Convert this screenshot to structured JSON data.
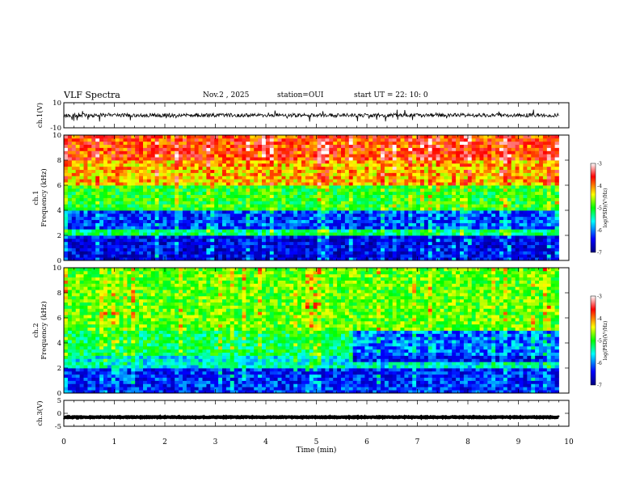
{
  "header": {
    "title": "VLF Spectra",
    "date": "Nov.2 , 2025",
    "station": "station=OUI",
    "start": "start UT = 22: 10: 0"
  },
  "chart_data": [
    {
      "type": "line",
      "panel": "ch1-waveform",
      "ylabel": "ch.1(V)",
      "ylim": [
        -10,
        10
      ],
      "yticks": [
        "10",
        "-10"
      ],
      "xlim": [
        0,
        10
      ],
      "trace_end_min": 9.8,
      "baseline": 0,
      "noise_amplitude": 1.5
    },
    {
      "type": "heatmap",
      "panel": "ch1-spectrogram",
      "ylabel": "ch.1 Frequency (kHz)",
      "ylim": [
        0,
        10
      ],
      "yticks": [
        "0",
        "2",
        "4",
        "6",
        "8",
        "10"
      ],
      "xlim": [
        0,
        10
      ],
      "data_end_min": 9.8,
      "colorbar": {
        "label": "log(PSD)(V²/Hz)",
        "range": [
          -7,
          -3
        ],
        "ticks": [
          "-3",
          "-4",
          "-5",
          "-6",
          "-7"
        ]
      },
      "levels_by_band": [
        {
          "from_khz": 0,
          "to_khz": 2,
          "log_psd": -6.5
        },
        {
          "from_khz": 2,
          "to_khz": 2.5,
          "log_psd": -5.3
        },
        {
          "from_khz": 2.5,
          "to_khz": 4,
          "log_psd": -6.2
        },
        {
          "from_khz": 4,
          "to_khz": 6,
          "log_psd": -5.0
        },
        {
          "from_khz": 6,
          "to_khz": 8,
          "log_psd": -4.2
        },
        {
          "from_khz": 8,
          "to_khz": 10,
          "log_psd": -3.8
        }
      ]
    },
    {
      "type": "heatmap",
      "panel": "ch2-spectrogram",
      "ylabel": "ch.2 Frequency (kHz)",
      "ylim": [
        0,
        10
      ],
      "yticks": [
        "0",
        "2",
        "4",
        "6",
        "8",
        "10"
      ],
      "xlim": [
        0,
        10
      ],
      "data_end_min": 9.8,
      "colorbar": {
        "label": "log(PSD)(V²/Hz)",
        "range": [
          -7,
          -3
        ],
        "ticks": [
          "-3",
          "-4",
          "-5",
          "-6",
          "-7"
        ]
      },
      "levels_by_band": [
        {
          "from_khz": 0,
          "to_khz": 2,
          "log_psd": -6.3
        },
        {
          "from_khz": 2,
          "to_khz": 3,
          "log_psd": -5.6
        },
        {
          "from_khz": 3,
          "to_khz": 5,
          "log_psd": -5.2
        },
        {
          "from_khz": 5,
          "to_khz": 10,
          "log_psd": -4.8
        }
      ],
      "change_at_min": 5.7
    },
    {
      "type": "line",
      "panel": "ch3-waveform",
      "ylabel": "ch.3(V)",
      "ylim": [
        -5,
        5
      ],
      "yticks": [
        "5",
        "0",
        "-5"
      ],
      "xlim": [
        0,
        10
      ],
      "trace_end_min": 9.8,
      "baseline": -1.5,
      "noise_amplitude": 0.15
    }
  ],
  "xaxis": {
    "label": "Time (min)",
    "ticks": [
      "0",
      "1",
      "2",
      "3",
      "4",
      "5",
      "6",
      "7",
      "8",
      "9",
      "10"
    ]
  },
  "colors": {
    "trace": "#000000",
    "colormap": [
      "#00007f",
      "#0000ff",
      "#00ffff",
      "#00ff00",
      "#ffff00",
      "#ff0000",
      "#ffffff"
    ]
  }
}
